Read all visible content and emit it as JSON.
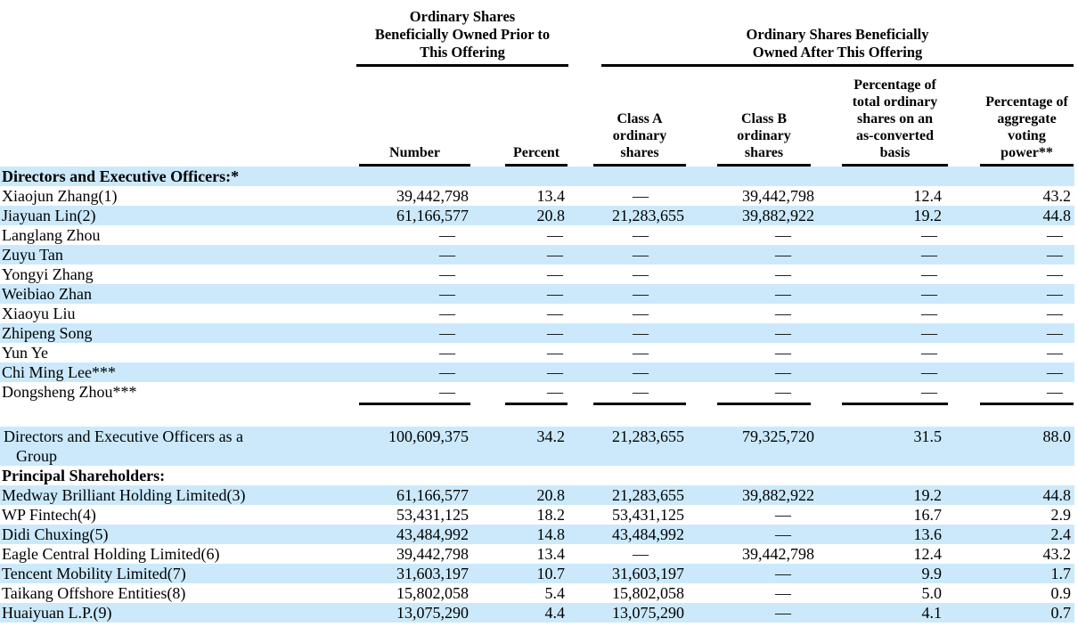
{
  "colors": {
    "row_highlight": "#cbe9fb",
    "text": "#000000",
    "rule": "#000000"
  },
  "table": {
    "empty_marker": "—",
    "group_headers": [
      "Ordinary Shares Beneficially Owned Prior to This Offering",
      "Ordinary Shares Beneficially Owned After This Offering"
    ],
    "columns": [
      "Number",
      "Percent",
      "Class A ordinary shares",
      "Class B ordinary shares",
      "Percentage of total ordinary shares on an as-converted basis",
      "Percentage of aggregate voting power**"
    ],
    "rows": [
      {
        "label": "Directors and Executive Officers:*",
        "style": "section",
        "shaded": true,
        "values": [
          "",
          "",
          "",
          "",
          "",
          ""
        ]
      },
      {
        "label": "Xiaojun Zhang(1)",
        "style": "data",
        "shaded": false,
        "values": [
          "39,442,798",
          "13.4",
          "—",
          "39,442,798",
          "12.4",
          "43.2"
        ]
      },
      {
        "label": "Jiayuan Lin(2)",
        "style": "data",
        "shaded": true,
        "values": [
          "61,166,577",
          "20.8",
          "21,283,655",
          "39,882,922",
          "19.2",
          "44.8"
        ]
      },
      {
        "label": "Langlang Zhou",
        "style": "data",
        "shaded": false,
        "values": [
          "—",
          "—",
          "—",
          "—",
          "—",
          "—"
        ]
      },
      {
        "label": "Zuyu Tan",
        "style": "data",
        "shaded": true,
        "values": [
          "—",
          "—",
          "—",
          "—",
          "—",
          "—"
        ]
      },
      {
        "label": "Yongyi Zhang",
        "style": "data",
        "shaded": false,
        "values": [
          "—",
          "—",
          "—",
          "—",
          "—",
          "—"
        ]
      },
      {
        "label": "Weibiao Zhan",
        "style": "data",
        "shaded": true,
        "values": [
          "—",
          "—",
          "—",
          "—",
          "—",
          "—"
        ]
      },
      {
        "label": "Xiaoyu Liu",
        "style": "data",
        "shaded": false,
        "values": [
          "—",
          "—",
          "—",
          "—",
          "—",
          "—"
        ]
      },
      {
        "label": "Zhipeng Song",
        "style": "data",
        "shaded": true,
        "values": [
          "—",
          "—",
          "—",
          "—",
          "—",
          "—"
        ]
      },
      {
        "label": "Yun Ye",
        "style": "data",
        "shaded": false,
        "values": [
          "—",
          "—",
          "—",
          "—",
          "—",
          "—"
        ]
      },
      {
        "label": "Chi Ming Lee***",
        "style": "data",
        "shaded": true,
        "values": [
          "—",
          "—",
          "—",
          "—",
          "—",
          "—"
        ]
      },
      {
        "label": "Dongsheng Zhou***",
        "style": "data",
        "shaded": false,
        "values": [
          "—",
          "—",
          "—",
          "—",
          "—",
          "—"
        ]
      },
      {
        "style": "rule"
      },
      {
        "style": "spacer"
      },
      {
        "label": "Directors and Executive Officers as a Group",
        "style": "total",
        "shaded": true,
        "values": [
          "100,609,375",
          "34.2",
          "21,283,655",
          "79,325,720",
          "31.5",
          "88.0"
        ]
      },
      {
        "label": "Principal Shareholders:",
        "style": "section",
        "shaded": false,
        "values": [
          "",
          "",
          "",
          "",
          "",
          ""
        ]
      },
      {
        "label": "Medway Brilliant Holding Limited(3)",
        "style": "data",
        "shaded": true,
        "values": [
          "61,166,577",
          "20.8",
          "21,283,655",
          "39,882,922",
          "19.2",
          "44.8"
        ]
      },
      {
        "label": "WP Fintech(4)",
        "style": "data",
        "shaded": false,
        "values": [
          "53,431,125",
          "18.2",
          "53,431,125",
          "—",
          "16.7",
          "2.9"
        ]
      },
      {
        "label": "Didi Chuxing(5)",
        "style": "data",
        "shaded": true,
        "values": [
          "43,484,992",
          "14.8",
          "43,484,992",
          "—",
          "13.6",
          "2.4"
        ]
      },
      {
        "label": "Eagle Central Holding Limited(6)",
        "style": "data",
        "shaded": false,
        "values": [
          "39,442,798",
          "13.4",
          "—",
          "39,442,798",
          "12.4",
          "43.2"
        ]
      },
      {
        "label": "Tencent Mobility Limited(7)",
        "style": "data",
        "shaded": true,
        "values": [
          "31,603,197",
          "10.7",
          "31,603,197",
          "—",
          "9.9",
          "1.7"
        ]
      },
      {
        "label": "Taikang Offshore Entities(8)",
        "style": "data",
        "shaded": false,
        "values": [
          "15,802,058",
          "5.4",
          "15,802,058",
          "—",
          "5.0",
          "0.9"
        ]
      },
      {
        "label": "Huaiyuan L.P.(9)",
        "style": "data",
        "shaded": true,
        "values": [
          "13,075,290",
          "4.4",
          "13,075,290",
          "—",
          "4.1",
          "0.7"
        ]
      }
    ]
  }
}
